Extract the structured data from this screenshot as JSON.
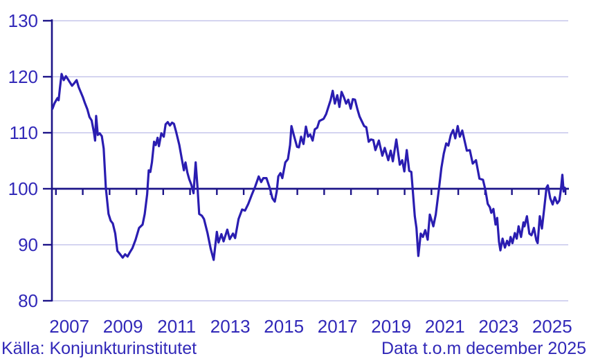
{
  "chart_data": {
    "type": "line",
    "title": "",
    "ylabel": "",
    "xlabel": "",
    "y_range": [
      80,
      130
    ],
    "y_ticks": [
      130,
      120,
      110,
      100,
      90,
      80
    ],
    "x_range": [
      2006.85,
      2026.1
    ],
    "x_tick_years": [
      2007,
      2008,
      2009,
      2010,
      2011,
      2012,
      2013,
      2014,
      2015,
      2016,
      2017,
      2018,
      2019,
      2020,
      2021,
      2022,
      2023,
      2024,
      2025,
      2026
    ],
    "x_label_years": [
      "2007",
      "2009",
      "2011",
      "2013",
      "2015",
      "2017",
      "2019",
      "2021",
      "2023",
      "2025"
    ],
    "reference_line": 100,
    "grid": "horizontal",
    "legend": "none",
    "points": [
      [
        2006.87,
        114.3
      ],
      [
        2006.94,
        115.2
      ],
      [
        2007.02,
        115.9
      ],
      [
        2007.06,
        116.2
      ],
      [
        2007.1,
        115.8
      ],
      [
        2007.15,
        118.0
      ],
      [
        2007.21,
        120.5
      ],
      [
        2007.29,
        119.4
      ],
      [
        2007.37,
        120.1
      ],
      [
        2007.44,
        119.6
      ],
      [
        2007.52,
        119.0
      ],
      [
        2007.6,
        118.4
      ],
      [
        2007.69,
        118.9
      ],
      [
        2007.77,
        119.4
      ],
      [
        2007.85,
        118.1
      ],
      [
        2007.93,
        117.2
      ],
      [
        2008.0,
        116.4
      ],
      [
        2008.08,
        115.3
      ],
      [
        2008.17,
        114.2
      ],
      [
        2008.25,
        112.8
      ],
      [
        2008.33,
        112.2
      ],
      [
        2008.42,
        110.0
      ],
      [
        2008.46,
        108.6
      ],
      [
        2008.5,
        113.0
      ],
      [
        2008.56,
        109.6
      ],
      [
        2008.63,
        109.9
      ],
      [
        2008.71,
        109.4
      ],
      [
        2008.78,
        107.2
      ],
      [
        2008.86,
        100.2
      ],
      [
        2008.96,
        95.5
      ],
      [
        2009.04,
        94.3
      ],
      [
        2009.12,
        93.8
      ],
      [
        2009.21,
        92.0
      ],
      [
        2009.29,
        88.9
      ],
      [
        2009.38,
        88.4
      ],
      [
        2009.49,
        87.7
      ],
      [
        2009.58,
        88.3
      ],
      [
        2009.67,
        87.9
      ],
      [
        2009.75,
        88.6
      ],
      [
        2009.85,
        89.4
      ],
      [
        2009.97,
        90.9
      ],
      [
        2010.1,
        93.0
      ],
      [
        2010.23,
        93.6
      ],
      [
        2010.31,
        95.5
      ],
      [
        2010.4,
        99.0
      ],
      [
        2010.46,
        103.3
      ],
      [
        2010.52,
        103.0
      ],
      [
        2010.58,
        104.7
      ],
      [
        2010.66,
        108.4
      ],
      [
        2010.72,
        107.8
      ],
      [
        2010.79,
        109.1
      ],
      [
        2010.84,
        107.6
      ],
      [
        2010.93,
        109.9
      ],
      [
        2011.02,
        109.3
      ],
      [
        2011.09,
        111.5
      ],
      [
        2011.17,
        111.9
      ],
      [
        2011.25,
        111.3
      ],
      [
        2011.33,
        111.8
      ],
      [
        2011.4,
        111.6
      ],
      [
        2011.48,
        110.2
      ],
      [
        2011.6,
        107.8
      ],
      [
        2011.71,
        104.9
      ],
      [
        2011.77,
        103.3
      ],
      [
        2011.83,
        104.7
      ],
      [
        2011.9,
        102.9
      ],
      [
        2011.97,
        101.7
      ],
      [
        2012.05,
        100.7
      ],
      [
        2012.13,
        99.2
      ],
      [
        2012.21,
        104.7
      ],
      [
        2012.28,
        100.2
      ],
      [
        2012.34,
        95.5
      ],
      [
        2012.44,
        95.2
      ],
      [
        2012.52,
        94.6
      ],
      [
        2012.65,
        92.1
      ],
      [
        2012.77,
        89.3
      ],
      [
        2012.88,
        87.3
      ],
      [
        2013.0,
        92.3
      ],
      [
        2013.06,
        90.4
      ],
      [
        2013.17,
        91.9
      ],
      [
        2013.25,
        90.6
      ],
      [
        2013.39,
        92.7
      ],
      [
        2013.48,
        91.0
      ],
      [
        2013.6,
        92.0
      ],
      [
        2013.68,
        91.2
      ],
      [
        2013.81,
        94.6
      ],
      [
        2013.94,
        96.3
      ],
      [
        2014.05,
        96.1
      ],
      [
        2014.17,
        97.3
      ],
      [
        2014.3,
        98.9
      ],
      [
        2014.43,
        100.4
      ],
      [
        2014.56,
        102.2
      ],
      [
        2014.65,
        101.2
      ],
      [
        2014.73,
        101.9
      ],
      [
        2014.85,
        101.9
      ],
      [
        2014.98,
        100.0
      ],
      [
        2015.07,
        98.3
      ],
      [
        2015.16,
        97.7
      ],
      [
        2015.23,
        99.5
      ],
      [
        2015.29,
        102.2
      ],
      [
        2015.37,
        102.8
      ],
      [
        2015.44,
        101.9
      ],
      [
        2015.55,
        104.7
      ],
      [
        2015.65,
        105.3
      ],
      [
        2015.73,
        107.8
      ],
      [
        2015.78,
        111.2
      ],
      [
        2015.88,
        109.4
      ],
      [
        2015.99,
        107.5
      ],
      [
        2016.06,
        107.4
      ],
      [
        2016.14,
        109.3
      ],
      [
        2016.23,
        108.0
      ],
      [
        2016.32,
        111.1
      ],
      [
        2016.4,
        109.3
      ],
      [
        2016.48,
        109.7
      ],
      [
        2016.57,
        108.6
      ],
      [
        2016.65,
        110.6
      ],
      [
        2016.74,
        110.9
      ],
      [
        2016.82,
        112.1
      ],
      [
        2016.9,
        112.3
      ],
      [
        2016.98,
        112.5
      ],
      [
        2017.07,
        113.3
      ],
      [
        2017.15,
        114.5
      ],
      [
        2017.24,
        115.8
      ],
      [
        2017.32,
        117.5
      ],
      [
        2017.4,
        115.2
      ],
      [
        2017.49,
        116.7
      ],
      [
        2017.57,
        114.6
      ],
      [
        2017.65,
        117.3
      ],
      [
        2017.74,
        116.3
      ],
      [
        2017.82,
        115.2
      ],
      [
        2017.9,
        115.9
      ],
      [
        2017.99,
        114.3
      ],
      [
        2018.07,
        116.0
      ],
      [
        2018.15,
        115.9
      ],
      [
        2018.24,
        114.2
      ],
      [
        2018.32,
        112.9
      ],
      [
        2018.4,
        112.1
      ],
      [
        2018.49,
        111.2
      ],
      [
        2018.57,
        111.0
      ],
      [
        2018.66,
        108.4
      ],
      [
        2018.74,
        108.8
      ],
      [
        2018.83,
        108.7
      ],
      [
        2018.91,
        106.9
      ],
      [
        2019.04,
        108.6
      ],
      [
        2019.17,
        105.9
      ],
      [
        2019.26,
        107.3
      ],
      [
        2019.39,
        105.1
      ],
      [
        2019.48,
        106.8
      ],
      [
        2019.56,
        104.9
      ],
      [
        2019.69,
        108.8
      ],
      [
        2019.82,
        104.3
      ],
      [
        2019.91,
        105.1
      ],
      [
        2019.99,
        103.1
      ],
      [
        2020.08,
        106.9
      ],
      [
        2020.17,
        103.2
      ],
      [
        2020.25,
        103.0
      ],
      [
        2020.3,
        100.0
      ],
      [
        2020.38,
        95.1
      ],
      [
        2020.44,
        93.0
      ],
      [
        2020.51,
        88.0
      ],
      [
        2020.6,
        92.0
      ],
      [
        2020.68,
        91.4
      ],
      [
        2020.77,
        92.6
      ],
      [
        2020.86,
        90.9
      ],
      [
        2020.94,
        95.4
      ],
      [
        2021.03,
        94.0
      ],
      [
        2021.07,
        93.3
      ],
      [
        2021.16,
        95.4
      ],
      [
        2021.29,
        100.4
      ],
      [
        2021.37,
        103.7
      ],
      [
        2021.46,
        106.3
      ],
      [
        2021.55,
        108.1
      ],
      [
        2021.63,
        107.7
      ],
      [
        2021.72,
        109.6
      ],
      [
        2021.81,
        110.5
      ],
      [
        2021.89,
        109.0
      ],
      [
        2021.98,
        111.2
      ],
      [
        2022.06,
        109.3
      ],
      [
        2022.15,
        110.4
      ],
      [
        2022.32,
        106.8
      ],
      [
        2022.43,
        106.9
      ],
      [
        2022.54,
        104.5
      ],
      [
        2022.66,
        105.1
      ],
      [
        2022.79,
        101.8
      ],
      [
        2022.92,
        101.6
      ],
      [
        2023.01,
        99.8
      ],
      [
        2023.1,
        97.3
      ],
      [
        2023.18,
        96.7
      ],
      [
        2023.23,
        95.7
      ],
      [
        2023.31,
        96.4
      ],
      [
        2023.39,
        93.6
      ],
      [
        2023.45,
        94.8
      ],
      [
        2023.52,
        90.5
      ],
      [
        2023.57,
        89.0
      ],
      [
        2023.65,
        91.1
      ],
      [
        2023.74,
        89.5
      ],
      [
        2023.82,
        90.7
      ],
      [
        2023.89,
        89.9
      ],
      [
        2023.95,
        91.4
      ],
      [
        2024.02,
        90.3
      ],
      [
        2024.11,
        92.1
      ],
      [
        2024.18,
        91.1
      ],
      [
        2024.25,
        93.3
      ],
      [
        2024.34,
        91.4
      ],
      [
        2024.43,
        94.0
      ],
      [
        2024.47,
        93.3
      ],
      [
        2024.56,
        95.1
      ],
      [
        2024.65,
        92.0
      ],
      [
        2024.73,
        91.7
      ],
      [
        2024.82,
        93.0
      ],
      [
        2024.91,
        90.8
      ],
      [
        2024.96,
        90.3
      ],
      [
        2025.04,
        95.1
      ],
      [
        2025.12,
        92.9
      ],
      [
        2025.21,
        96.7
      ],
      [
        2025.29,
        100.2
      ],
      [
        2025.34,
        100.6
      ],
      [
        2025.43,
        98.3
      ],
      [
        2025.52,
        97.2
      ],
      [
        2025.6,
        98.5
      ],
      [
        2025.69,
        97.4
      ],
      [
        2025.77,
        97.9
      ],
      [
        2025.83,
        100.0
      ],
      [
        2025.88,
        102.5
      ],
      [
        2025.93,
        99.5
      ],
      [
        2025.97,
        100.2
      ]
    ]
  },
  "footer": {
    "source": "Källa: Konjunkturinstitutet",
    "data_note": "Data t.o.m december 2025"
  },
  "colors": {
    "line": "#2a1db1",
    "axis": "#1c1488",
    "reference_line": "#1c1488",
    "grid": "#d4d4f0",
    "text": "#3128b8",
    "background": "#ffffff"
  }
}
